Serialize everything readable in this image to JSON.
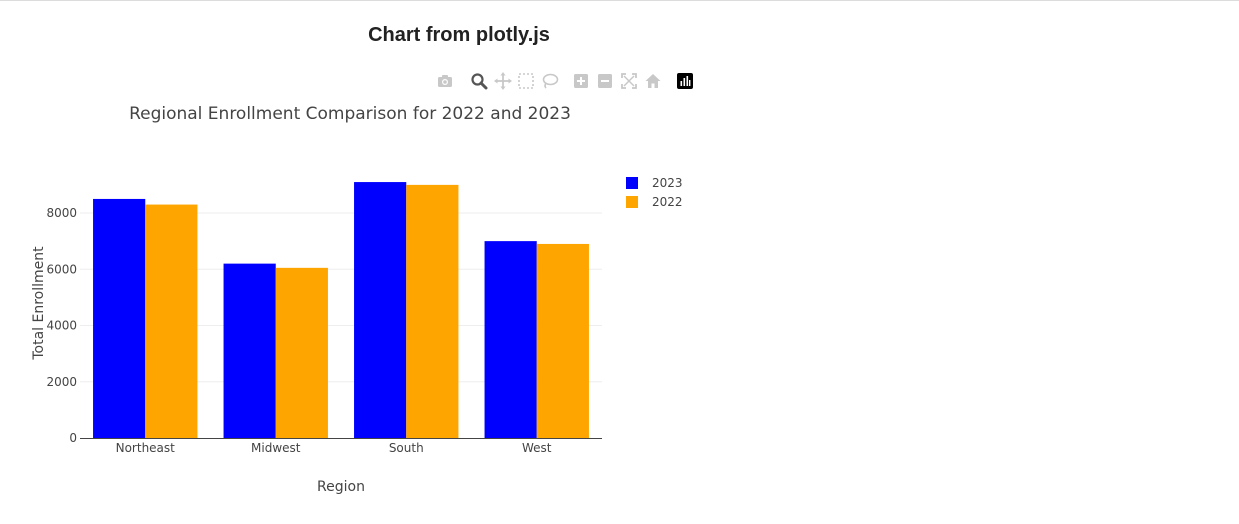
{
  "page": {
    "heading": "Chart from plotly.js"
  },
  "modebar": {
    "buttons": [
      {
        "name": "download-plot-icon",
        "active": false
      },
      {
        "name": "zoom-icon",
        "active": true
      },
      {
        "name": "pan-icon",
        "active": false
      },
      {
        "name": "box-select-icon",
        "active": false
      },
      {
        "name": "lasso-select-icon",
        "active": false
      },
      {
        "name": "zoom-in-icon",
        "active": false
      },
      {
        "name": "zoom-out-icon",
        "active": false
      },
      {
        "name": "autoscale-icon",
        "active": false
      },
      {
        "name": "reset-axes-icon",
        "active": false
      },
      {
        "name": "plotly-logo-icon",
        "active": false
      }
    ]
  },
  "chart_data": {
    "type": "bar",
    "title": "Regional Enrollment Comparison for 2022 and 2023",
    "xlabel": "Region",
    "ylabel": "Total Enrollment",
    "categories": [
      "Northeast",
      "Midwest",
      "South",
      "West"
    ],
    "series": [
      {
        "name": "2023",
        "color": "#0000ff",
        "values": [
          8500,
          6200,
          9100,
          7000
        ]
      },
      {
        "name": "2022",
        "color": "#ffa500",
        "values": [
          8300,
          6050,
          9000,
          6900
        ]
      }
    ],
    "ylim": [
      0,
      9600
    ],
    "yticks": [
      0,
      2000,
      4000,
      6000,
      8000
    ],
    "ytick_labels": [
      "0",
      "2000",
      "4000",
      "6000",
      "8000"
    ],
    "grid": true,
    "legend_position": "right"
  }
}
